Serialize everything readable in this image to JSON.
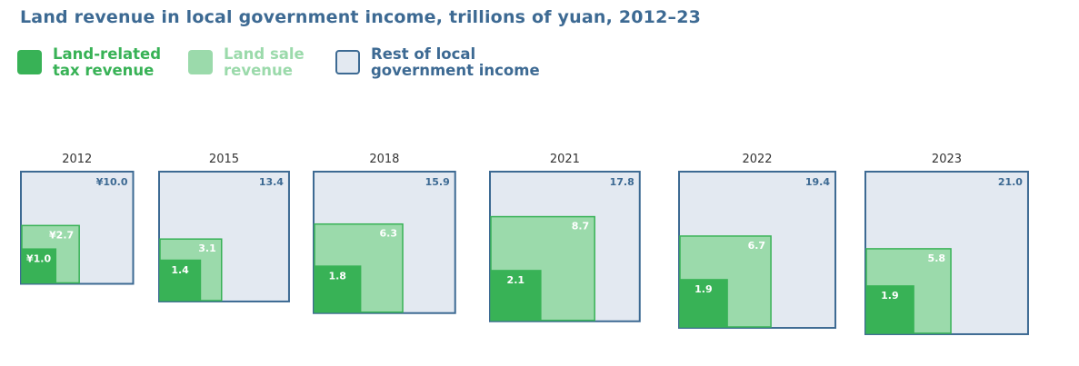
{
  "title": "Land revenue in local government income, trillions of yuan, 2012–23",
  "colors": {
    "land_tax": "#38b256",
    "land_sale": "#9bdaab",
    "rest_fill": "#e3e9f1",
    "rest_border": "#3d6a93",
    "title": "#3d6a93",
    "year_label": "#333333"
  },
  "legend": [
    {
      "key": "land_tax",
      "label": "Land-related\ntax revenue",
      "icon": "dark-green-square"
    },
    {
      "key": "land_sale",
      "label": "Land sale\nrevenue",
      "icon": "light-green-square"
    },
    {
      "key": "rest",
      "label": "Rest of local\ngovernment income",
      "icon": "outlined-blue-square"
    }
  ],
  "chart_data": {
    "type": "nested-square",
    "title": "Land revenue in local government income, trillions of yuan, 2012–23",
    "units": "trillions of yuan",
    "categories": [
      "2012",
      "2015",
      "2018",
      "2021",
      "2022",
      "2023"
    ],
    "series": [
      {
        "name": "Rest of local government income",
        "key": "total",
        "values": [
          10.0,
          13.4,
          15.9,
          17.8,
          19.4,
          21.0
        ],
        "labels": [
          "¥10.0",
          "13.4",
          "15.9",
          "17.8",
          "19.4",
          "21.0"
        ]
      },
      {
        "name": "Land sale revenue",
        "key": "land_sale",
        "values": [
          2.7,
          3.1,
          6.3,
          8.7,
          6.7,
          5.8
        ],
        "labels": [
          "¥2.7",
          "3.1",
          "6.3",
          "8.7",
          "6.7",
          "5.8"
        ]
      },
      {
        "name": "Land-related tax revenue",
        "key": "land_tax",
        "values": [
          1.0,
          1.4,
          1.8,
          2.1,
          1.9,
          1.9
        ],
        "labels": [
          "¥1.0",
          "1.4",
          "1.8",
          "2.1",
          "1.9",
          "1.9"
        ]
      }
    ]
  }
}
